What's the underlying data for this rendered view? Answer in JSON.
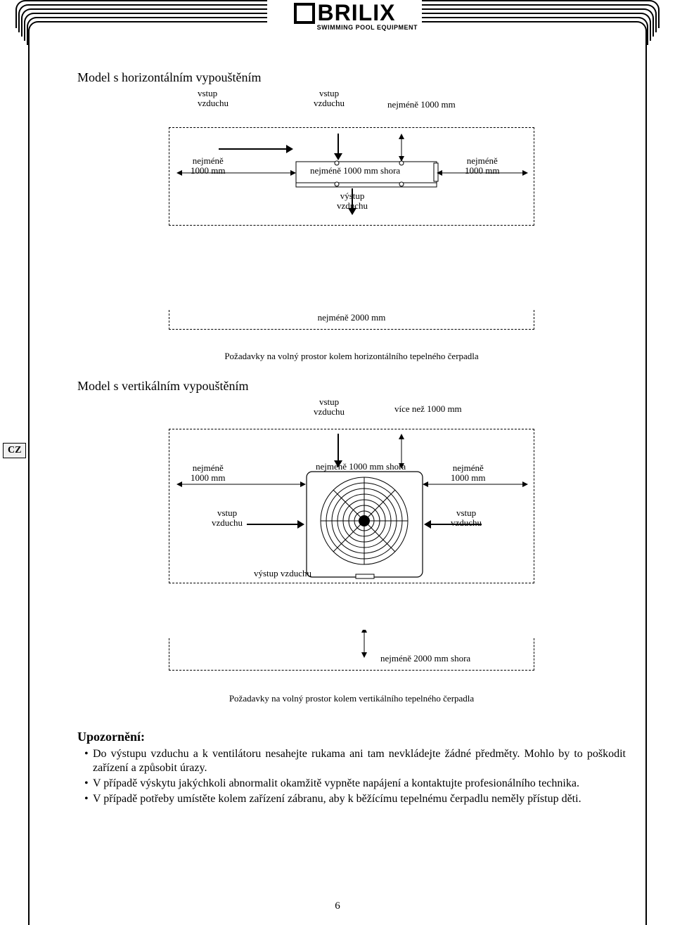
{
  "brand": {
    "name": "BRILIX",
    "tagline": "SWIMMING POOL EQUIPMENT"
  },
  "language_tab": "CZ",
  "sections": {
    "horizontal": {
      "title": "Model s horizontálním vypouštěním",
      "labels": {
        "air_in_left": "vstup\nvzduchu",
        "air_in_top": "vstup\nvzduchu",
        "top_min_above": "nejméně 1000 mm shora",
        "top_right": "nejméně 1000 mm",
        "left_min": "nejméně\n1000 mm",
        "right_min": "nejméně\n1000 mm",
        "air_out": "výstup\nvzduchu",
        "bottom_min": "nejméně 2000 mm"
      },
      "caption": "Požadavky na volný prostor kolem horizontálního tepelného čerpadla"
    },
    "vertical": {
      "title": "Model s vertikálním vypouštěním",
      "labels": {
        "air_in_top": "vstup\nvzduchu",
        "top_right": "více než 1000 mm",
        "left_min": "nejméně\n1000 mm",
        "top_min_above": "nejméně 1000 mm shora",
        "right_min": "nejméně\n1000 mm",
        "air_in_left2": "vstup\nvzduchu",
        "air_in_right2": "vstup\nvzduchu",
        "air_out": "výstup vzduchu",
        "bottom_min": "nejméně 2000 mm shora"
      },
      "caption": "Požadavky na volný prostor kolem vertikálního tepelného čerpadla"
    }
  },
  "notice": {
    "heading": "Upozornění:",
    "items": [
      "Do výstupu vzduchu a k ventilátoru nesahejte rukama ani tam nevkládejte žádné předměty. Mohlo by to poškodit zařízení a způsobit úrazy.",
      "V případě výskytu jakýchkoli abnormalit okamžitě vypněte napájení a kontaktujte profesionálního technika.",
      "V případě potřeby umístěte kolem zařízení zábranu, aby k běžícímu tepelnému čerpadlu neměly přístup děti."
    ]
  },
  "page_number": "6",
  "colors": {
    "text": "#000000",
    "bg": "#ffffff",
    "tab_bg": "#f0f0f0"
  }
}
